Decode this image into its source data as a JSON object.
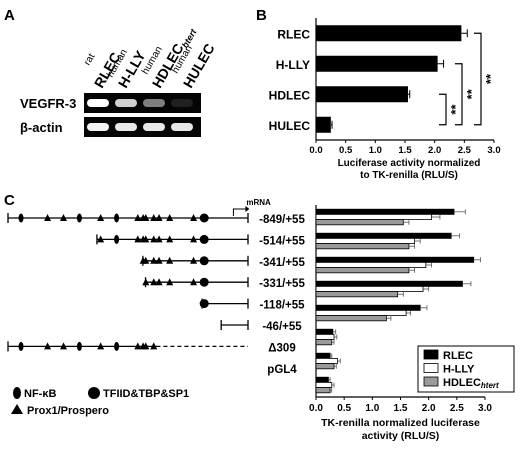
{
  "panel_labels": [
    "A",
    "B",
    "C"
  ],
  "panel_a": {
    "lanes": [
      {
        "species": "rat",
        "cell": "RLEC",
        "subscript": ""
      },
      {
        "species": "human",
        "cell": "H-LLY",
        "subscript": ""
      },
      {
        "species": "human",
        "cell": "HDLEC",
        "subscript": "htert"
      },
      {
        "species": "human",
        "cell": "HULEC",
        "subscript": ""
      }
    ],
    "rows": [
      {
        "label": "VEGFR-3",
        "intensities": [
          1.0,
          0.8,
          0.45,
          0.05
        ]
      },
      {
        "label": "β-actin",
        "intensities": [
          0.95,
          0.9,
          0.9,
          0.9
        ]
      }
    ]
  },
  "chart_data": [
    {
      "type": "bar",
      "orientation": "horizontal",
      "categories": [
        "RLEC",
        "H-LLY",
        "HDLEC",
        "HULEC"
      ],
      "values": [
        2.45,
        2.05,
        1.55,
        0.25
      ],
      "errors": [
        0.1,
        0.1,
        0.03,
        0.02
      ],
      "xlabel": "Luciferase activity normalized\nto TK-renilla (RLU/S)",
      "xlim": [
        0,
        3.0
      ],
      "xticks": [
        "0.0",
        "0.5",
        "1.0",
        "1.5",
        "2.0",
        "2.5",
        "3.0"
      ],
      "significance": [
        {
          "between": [
            "RLEC",
            "HULEC"
          ],
          "label": "**"
        },
        {
          "between": [
            "H-LLY",
            "HULEC"
          ],
          "label": "**"
        },
        {
          "between": [
            "HDLEC",
            "HULEC"
          ],
          "label": "**"
        }
      ]
    },
    {
      "type": "bar",
      "orientation": "horizontal",
      "categories": [
        "-849/+55",
        "-514/+55",
        "-341/+55",
        "-331/+55",
        "-118/+55",
        "-46/+55",
        "Δ309",
        "pGL4"
      ],
      "series": [
        {
          "name": "RLEC",
          "color": "#000000",
          "values": [
            2.45,
            2.4,
            2.8,
            2.6,
            1.85,
            0.3,
            0.25,
            0.22
          ],
          "errors": [
            0.2,
            0.15,
            0.12,
            0.15,
            0.12,
            0.05,
            0.03,
            0.03
          ]
        },
        {
          "name": "H-LLY",
          "color": "#ffffff",
          "values": [
            2.05,
            1.75,
            1.95,
            1.9,
            1.6,
            0.32,
            0.38,
            0.28
          ],
          "errors": [
            0.15,
            0.1,
            0.1,
            0.1,
            0.08,
            0.05,
            0.05,
            0.04
          ]
        },
        {
          "name": "HDLEC",
          "subscript": "htert",
          "color": "#9a9a9a",
          "values": [
            1.55,
            1.65,
            1.65,
            1.45,
            1.25,
            0.28,
            0.32,
            0.25
          ],
          "errors": [
            0.1,
            0.1,
            0.1,
            0.1,
            0.08,
            0.04,
            0.04,
            0.03
          ]
        }
      ],
      "xlabel": "TK-renilla normalized luciferase\nactivity (RLU/S)",
      "xlim": [
        0,
        3.0
      ],
      "xticks": [
        "0.0",
        "0.5",
        "1.0",
        "1.5",
        "2.0",
        "2.5",
        "3.0"
      ],
      "legend": "bottom-right"
    }
  ],
  "panel_c_diagram": {
    "mrna_label": "mRNA",
    "constructs": [
      {
        "label": "-849/+55",
        "start": -849,
        "end": 55,
        "dashed": false,
        "sites": [
          -800,
          -700,
          -640,
          -580,
          -500,
          -440,
          -360,
          -340,
          -330,
          -300,
          -280,
          -240,
          -150,
          -110
        ]
      },
      {
        "label": "-514/+55",
        "start": -514,
        "end": 55,
        "dashed": false,
        "sites": [
          -500,
          -440,
          -360,
          -340,
          -330,
          -300,
          -280,
          -240,
          -150,
          -110
        ]
      },
      {
        "label": "-341/+55",
        "start": -341,
        "end": 55,
        "dashed": false,
        "sites": [
          -340,
          -330,
          -300,
          -280,
          -240,
          -150,
          -110
        ]
      },
      {
        "label": "-331/+55",
        "start": -331,
        "end": 55,
        "dashed": false,
        "sites": [
          -330,
          -300,
          -280,
          -240,
          -150,
          -110
        ]
      },
      {
        "label": "-118/+55",
        "start": -118,
        "end": 55,
        "dashed": false,
        "sites": [
          -110
        ]
      },
      {
        "label": "-46/+55",
        "start": -46,
        "end": 55,
        "dashed": false,
        "sites": []
      },
      {
        "label": "Δ309",
        "start": -849,
        "end": 55,
        "dashed": true,
        "sites": [
          -800,
          -700,
          -640,
          -580,
          -500,
          -440,
          -360,
          -340,
          -330,
          -300
        ]
      },
      {
        "label": "pGL4",
        "start": null,
        "end": null,
        "dashed": false,
        "sites": []
      }
    ],
    "site_legend": [
      {
        "symbol": "ellipse",
        "label": "NF-κB"
      },
      {
        "symbol": "circle",
        "label": "TFIID&TBP&SP1"
      },
      {
        "symbol": "triangle",
        "label": "Prox1/Prospero"
      }
    ]
  }
}
